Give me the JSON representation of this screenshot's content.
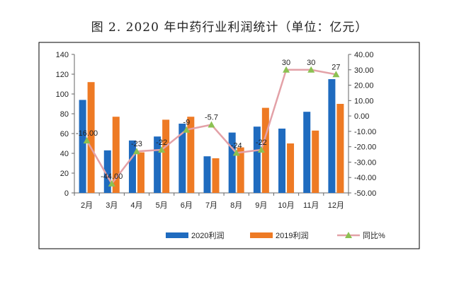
{
  "title": "图 2. 2020 年中药行业利润统计（单位：亿元）",
  "colors": {
    "series_2020": "#1F6BBF",
    "series_2019": "#EE7A24",
    "yoy_line": "#E3A1A7",
    "yoy_marker": "#8CC152"
  },
  "chart_data": {
    "type": "bar",
    "categories": [
      "2月",
      "3月",
      "4月",
      "5月",
      "6月",
      "7月",
      "8月",
      "9月",
      "10月",
      "11月",
      "12月"
    ],
    "series": [
      {
        "name": "2020利润",
        "type": "bar",
        "axis": "left",
        "values": [
          94,
          43,
          53,
          57,
          70,
          37,
          61,
          67,
          65,
          82,
          115
        ]
      },
      {
        "name": "2019利润",
        "type": "bar",
        "axis": "left",
        "values": [
          112,
          77,
          41,
          74,
          77,
          35,
          46,
          86,
          50,
          63,
          90
        ]
      },
      {
        "name": "同比%",
        "type": "line",
        "axis": "right",
        "values": [
          -16,
          -44,
          -23,
          -22,
          -9,
          -5.7,
          -24,
          -22,
          30,
          30,
          27
        ],
        "labels": [
          "-16.00",
          "-44.00",
          "-23",
          "-22",
          "-9",
          "-5.7",
          "-24",
          "-22",
          "30",
          "30",
          "27"
        ]
      }
    ],
    "y_left": {
      "ylim": [
        0,
        140
      ],
      "ticks": [
        "0",
        "20",
        "40",
        "60",
        "80",
        "100",
        "120",
        "140"
      ]
    },
    "y_right": {
      "ylim": [
        -50,
        40
      ],
      "ticks": [
        "-50.00",
        "-40.00",
        "-30.00",
        "-20.00",
        "-10.00",
        "0.00",
        "10.00",
        "20.00",
        "30.00",
        "40.00"
      ]
    },
    "grid": false,
    "legend_position": "bottom"
  }
}
